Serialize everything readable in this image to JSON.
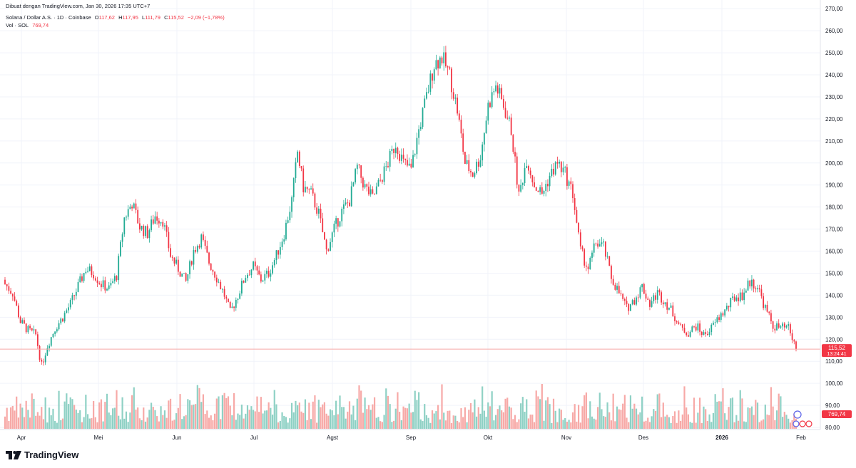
{
  "header": {
    "created_by": "Dibuat dengan TradingView.com, Jan 30, 2026 17:35 UTC+7",
    "symbol": "Solana / Dollar A.S. · 1D · Coinbase",
    "o_label": "O",
    "o_value": "117,62",
    "h_label": "H",
    "h_value": "117,95",
    "l_label": "L",
    "l_value": "111,79",
    "c_label": "C",
    "c_value": "115,52",
    "change": "−2,09 (−1,78%)",
    "vol_label": "Vol · SOL",
    "vol_value": "769,74"
  },
  "brand": {
    "name": "TradingView"
  },
  "colors": {
    "up": "#22ab94",
    "down": "#f23645",
    "vol_up": "#8fd1c5",
    "vol_down": "#f7a9a7",
    "grid": "#f0f3fa",
    "text": "#131722"
  },
  "chart_data": {
    "type": "candlestick",
    "title": "Solana / Dollar A.S. · 1D · Coinbase",
    "ylim": [
      80,
      272
    ],
    "y_ticks": [
      "80,00",
      "90,00",
      "100,00",
      "110,00",
      "120,00",
      "130,00",
      "140,00",
      "150,00",
      "160,00",
      "170,00",
      "180,00",
      "190,00",
      "200,00",
      "210,00",
      "220,00",
      "230,00",
      "240,00",
      "250,00",
      "260,00",
      "270,00"
    ],
    "x_ticks": [
      "Apr",
      "Mei",
      "Jun",
      "Jul",
      "Agst",
      "Sep",
      "Okt",
      "Nov",
      "Des",
      "2026",
      "Feb"
    ],
    "close_path": [
      [
        0,
        145
      ],
      [
        4,
        141
      ],
      [
        8,
        128
      ],
      [
        12,
        124
      ],
      [
        16,
        122
      ],
      [
        19,
        108
      ],
      [
        22,
        117
      ],
      [
        26,
        125
      ],
      [
        30,
        130
      ],
      [
        34,
        136
      ],
      [
        38,
        144
      ],
      [
        42,
        152
      ],
      [
        46,
        150
      ],
      [
        50,
        145
      ],
      [
        54,
        143
      ],
      [
        58,
        149
      ],
      [
        62,
        175
      ],
      [
        66,
        182
      ],
      [
        70,
        171
      ],
      [
        74,
        168
      ],
      [
        78,
        176
      ],
      [
        82,
        174
      ],
      [
        86,
        158
      ],
      [
        90,
        152
      ],
      [
        94,
        146
      ],
      [
        98,
        160
      ],
      [
        102,
        166
      ],
      [
        106,
        155
      ],
      [
        110,
        148
      ],
      [
        114,
        140
      ],
      [
        117,
        132
      ],
      [
        121,
        140
      ],
      [
        125,
        149
      ],
      [
        129,
        153
      ],
      [
        133,
        147
      ],
      [
        137,
        150
      ],
      [
        141,
        158
      ],
      [
        145,
        168
      ],
      [
        149,
        183
      ],
      [
        152,
        205
      ],
      [
        155,
        189
      ],
      [
        159,
        186
      ],
      [
        163,
        177
      ],
      [
        167,
        160
      ],
      [
        171,
        170
      ],
      [
        175,
        178
      ],
      [
        179,
        183
      ],
      [
        183,
        198
      ],
      [
        187,
        189
      ],
      [
        191,
        184
      ],
      [
        195,
        192
      ],
      [
        199,
        200
      ],
      [
        203,
        209
      ],
      [
        207,
        200
      ],
      [
        211,
        197
      ],
      [
        215,
        215
      ],
      [
        219,
        230
      ],
      [
        223,
        245
      ],
      [
        227,
        248
      ],
      [
        231,
        240
      ],
      [
        235,
        224
      ],
      [
        239,
        200
      ],
      [
        243,
        195
      ],
      [
        247,
        203
      ],
      [
        251,
        226
      ],
      [
        255,
        235
      ],
      [
        259,
        226
      ],
      [
        263,
        215
      ],
      [
        267,
        185
      ],
      [
        271,
        202
      ],
      [
        275,
        190
      ],
      [
        279,
        186
      ],
      [
        283,
        194
      ],
      [
        287,
        200
      ],
      [
        291,
        195
      ],
      [
        295,
        186
      ],
      [
        299,
        160
      ],
      [
        303,
        152
      ],
      [
        307,
        164
      ],
      [
        311,
        162
      ],
      [
        315,
        148
      ],
      [
        319,
        141
      ],
      [
        323,
        134
      ],
      [
        327,
        138
      ],
      [
        331,
        144
      ],
      [
        335,
        136
      ],
      [
        339,
        141
      ],
      [
        343,
        137
      ],
      [
        347,
        132
      ],
      [
        351,
        125
      ],
      [
        355,
        123
      ],
      [
        359,
        126
      ],
      [
        363,
        122
      ],
      [
        367,
        125
      ],
      [
        371,
        130
      ],
      [
        375,
        134
      ],
      [
        379,
        139
      ],
      [
        383,
        140
      ],
      [
        387,
        146
      ],
      [
        391,
        144
      ],
      [
        395,
        134
      ],
      [
        399,
        126
      ],
      [
        403,
        125
      ],
      [
        407,
        125
      ],
      [
        411,
        115.52
      ]
    ],
    "last_price": "115,52",
    "countdown": "13:24:41",
    "last_volume": "769,74",
    "volume_axis_scale_max": 400
  }
}
